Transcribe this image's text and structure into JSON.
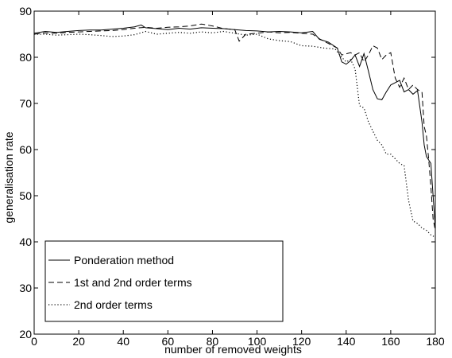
{
  "chart_data": {
    "type": "line",
    "title": "",
    "xlabel": "number of removed weights",
    "ylabel": "generalisation rate",
    "xlim": [
      0,
      180
    ],
    "ylim": [
      20,
      90
    ],
    "xticks": [
      0,
      20,
      40,
      60,
      80,
      100,
      120,
      140,
      160,
      180
    ],
    "yticks": [
      20,
      30,
      40,
      50,
      60,
      70,
      80,
      90
    ],
    "grid": false,
    "legend_position": "bottom-left",
    "series": [
      {
        "name": "Ponderation method",
        "style": "solid",
        "color": "#000000",
        "points": [
          [
            0,
            85.2
          ],
          [
            5,
            85.6
          ],
          [
            10,
            85.4
          ],
          [
            15,
            85.6
          ],
          [
            20,
            85.8
          ],
          [
            25,
            85.9
          ],
          [
            30,
            85.9
          ],
          [
            35,
            86.1
          ],
          [
            40,
            86.3
          ],
          [
            45,
            86.6
          ],
          [
            48,
            87.0
          ],
          [
            50,
            86.4
          ],
          [
            55,
            86.2
          ],
          [
            60,
            86.0
          ],
          [
            65,
            86.3
          ],
          [
            70,
            86.1
          ],
          [
            75,
            86.4
          ],
          [
            80,
            86.3
          ],
          [
            85,
            86.2
          ],
          [
            90,
            86.0
          ],
          [
            95,
            85.8
          ],
          [
            100,
            85.7
          ],
          [
            105,
            85.5
          ],
          [
            110,
            85.6
          ],
          [
            115,
            85.5
          ],
          [
            120,
            85.3
          ],
          [
            125,
            85.6
          ],
          [
            128,
            83.9
          ],
          [
            132,
            83.3
          ],
          [
            136,
            82.0
          ],
          [
            138,
            79.0
          ],
          [
            140,
            78.5
          ],
          [
            142,
            79.3
          ],
          [
            144,
            80.5
          ],
          [
            146,
            78.0
          ],
          [
            148,
            80.8
          ],
          [
            150,
            77.0
          ],
          [
            152,
            73.0
          ],
          [
            154,
            71.0
          ],
          [
            156,
            70.8
          ],
          [
            158,
            72.5
          ],
          [
            160,
            74.0
          ],
          [
            162,
            74.5
          ],
          [
            164,
            75.0
          ],
          [
            166,
            72.5
          ],
          [
            168,
            73.0
          ],
          [
            170,
            72.0
          ],
          [
            172,
            72.8
          ],
          [
            174,
            66.0
          ],
          [
            175,
            61.0
          ],
          [
            176,
            58.5
          ],
          [
            178,
            57.0
          ],
          [
            179,
            50.0
          ],
          [
            180,
            43.0
          ]
        ]
      },
      {
        "name": "1st and 2nd order terms",
        "style": "dashed",
        "color": "#000000",
        "points": [
          [
            0,
            85.0
          ],
          [
            5,
            85.3
          ],
          [
            10,
            85.2
          ],
          [
            15,
            85.4
          ],
          [
            20,
            85.5
          ],
          [
            25,
            85.6
          ],
          [
            30,
            85.7
          ],
          [
            35,
            85.8
          ],
          [
            40,
            86.0
          ],
          [
            45,
            86.3
          ],
          [
            50,
            86.5
          ],
          [
            55,
            86.3
          ],
          [
            60,
            86.5
          ],
          [
            65,
            86.6
          ],
          [
            70,
            86.8
          ],
          [
            75,
            87.2
          ],
          [
            80,
            86.8
          ],
          [
            85,
            86.2
          ],
          [
            90,
            86.0
          ],
          [
            92,
            83.5
          ],
          [
            95,
            85.0
          ],
          [
            100,
            85.2
          ],
          [
            105,
            85.5
          ],
          [
            110,
            85.3
          ],
          [
            115,
            85.4
          ],
          [
            120,
            85.2
          ],
          [
            125,
            85.0
          ],
          [
            128,
            84.0
          ],
          [
            132,
            83.0
          ],
          [
            136,
            82.0
          ],
          [
            138,
            80.5
          ],
          [
            142,
            81.0
          ],
          [
            144,
            80.5
          ],
          [
            146,
            81.0
          ],
          [
            148,
            79.0
          ],
          [
            150,
            80.5
          ],
          [
            152,
            82.5
          ],
          [
            154,
            82.0
          ],
          [
            156,
            79.5
          ],
          [
            158,
            80.5
          ],
          [
            160,
            81.0
          ],
          [
            162,
            75.5
          ],
          [
            164,
            73.5
          ],
          [
            166,
            75.5
          ],
          [
            168,
            73.0
          ],
          [
            170,
            74.0
          ],
          [
            172,
            73.0
          ],
          [
            174,
            72.5
          ],
          [
            175,
            65.0
          ],
          [
            176,
            63.0
          ],
          [
            177,
            58.0
          ],
          [
            178,
            52.0
          ],
          [
            179,
            45.0
          ],
          [
            180,
            42.5
          ]
        ]
      },
      {
        "name": "2nd order terms",
        "style": "dotted",
        "color": "#000000",
        "points": [
          [
            0,
            85.0
          ],
          [
            5,
            85.0
          ],
          [
            10,
            84.8
          ],
          [
            15,
            84.9
          ],
          [
            20,
            85.0
          ],
          [
            25,
            84.9
          ],
          [
            30,
            84.7
          ],
          [
            35,
            84.5
          ],
          [
            40,
            84.6
          ],
          [
            45,
            84.9
          ],
          [
            50,
            85.6
          ],
          [
            55,
            85.0
          ],
          [
            60,
            85.2
          ],
          [
            65,
            85.4
          ],
          [
            70,
            85.2
          ],
          [
            75,
            85.5
          ],
          [
            80,
            85.3
          ],
          [
            85,
            85.6
          ],
          [
            90,
            85.2
          ],
          [
            95,
            84.8
          ],
          [
            100,
            85.0
          ],
          [
            105,
            84.0
          ],
          [
            110,
            83.6
          ],
          [
            115,
            83.4
          ],
          [
            120,
            82.5
          ],
          [
            125,
            82.4
          ],
          [
            130,
            82.0
          ],
          [
            135,
            81.8
          ],
          [
            138,
            80.0
          ],
          [
            140,
            79.0
          ],
          [
            142,
            79.5
          ],
          [
            144,
            77.5
          ],
          [
            146,
            69.5
          ],
          [
            148,
            69.0
          ],
          [
            150,
            66.0
          ],
          [
            152,
            64.0
          ],
          [
            154,
            62.0
          ],
          [
            156,
            61.0
          ],
          [
            158,
            59.0
          ],
          [
            160,
            59.0
          ],
          [
            162,
            58.0
          ],
          [
            164,
            57.0
          ],
          [
            166,
            56.5
          ],
          [
            168,
            49.0
          ],
          [
            170,
            44.5
          ],
          [
            172,
            44.0
          ],
          [
            174,
            43.0
          ],
          [
            176,
            42.5
          ],
          [
            178,
            41.5
          ],
          [
            180,
            41.0
          ]
        ]
      }
    ]
  }
}
